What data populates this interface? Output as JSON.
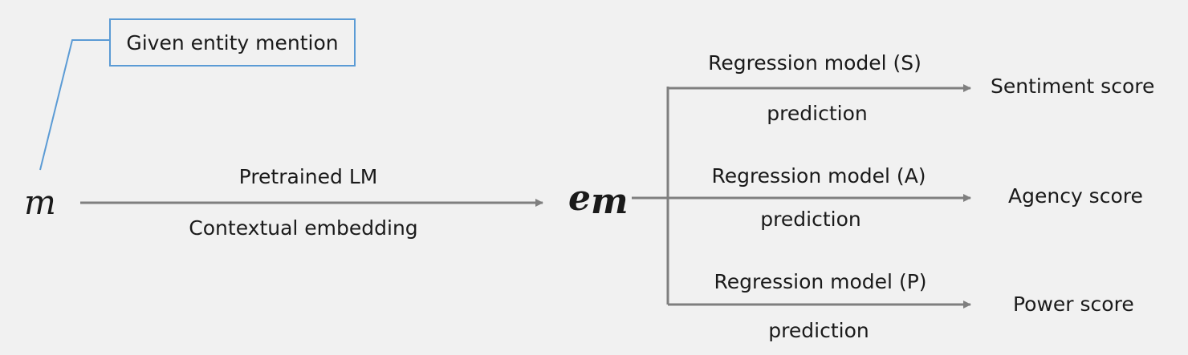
{
  "callout": {
    "label": "Given entity mention"
  },
  "symbols": {
    "input": "m",
    "embedding_base": "e",
    "embedding_sub": "m"
  },
  "encoder": {
    "top_label": "Pretrained LM",
    "bottom_label": "Contextual embedding"
  },
  "branches": [
    {
      "model": "Regression model (S)",
      "action": "prediction",
      "output": "Sentiment score"
    },
    {
      "model": "Regression model (A)",
      "action": "prediction",
      "output": "Agency score"
    },
    {
      "model": "Regression model (P)",
      "action": "prediction",
      "output": "Power score"
    }
  ],
  "colors": {
    "arrow": "#7f7f7f",
    "callout": "#5b9bd5"
  }
}
